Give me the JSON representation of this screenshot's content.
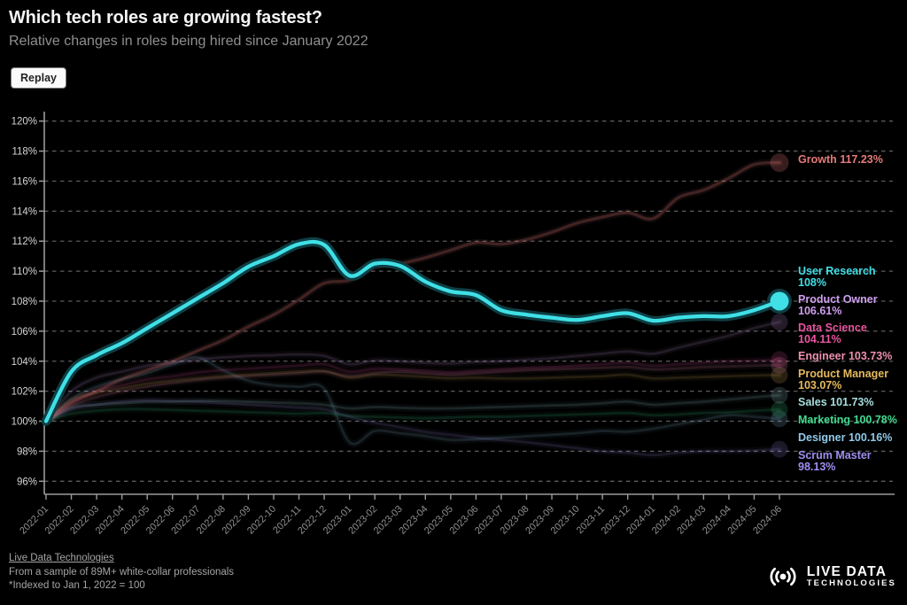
{
  "header": {
    "title": "Which tech roles are growing fastest?",
    "subtitle": "Relative changes in roles being hired since January 2022",
    "replay_label": "Replay"
  },
  "footer": {
    "source": "Live Data Technologies",
    "sample": "From a sample of 89M+ white-collar professionals",
    "note": "*Indexed to Jan 1, 2022 = 100",
    "logo_name": "LIVE DATA",
    "logo_sub": "TECHNOLOGIES"
  },
  "chart_data": {
    "type": "line",
    "x": [
      "2022-01",
      "2022-02",
      "2022-03",
      "2022-04",
      "2022-05",
      "2022-06",
      "2022-07",
      "2022-08",
      "2022-09",
      "2022-10",
      "2022-11",
      "2022-12",
      "2023-01",
      "2023-02",
      "2023-03",
      "2023-04",
      "2023-05",
      "2023-06",
      "2023-07",
      "2023-08",
      "2023-09",
      "2023-10",
      "2023-11",
      "2023-12",
      "2024-01",
      "2024-02",
      "2024-03",
      "2024-04",
      "2024-05",
      "2024-06"
    ],
    "ylim": [
      96,
      120
    ],
    "ytick_step": 2,
    "ytick_format": "percent",
    "grid": "dashed-horizontal",
    "legend_position": "right-end-labels",
    "baseline_note": "indexed, Jan 2022 = 100",
    "series": [
      {
        "name": "Growth",
        "final_label": "117.23%",
        "color": "#E57A7A",
        "highlight": false,
        "emphasis": "medium",
        "values": [
          100,
          101.2,
          102.0,
          102.8,
          103.4,
          104.0,
          104.7,
          105.4,
          106.3,
          107.1,
          108.1,
          109.2,
          109.4,
          110.3,
          110.5,
          110.9,
          111.4,
          111.9,
          111.8,
          112.1,
          112.6,
          113.2,
          113.6,
          113.9,
          113.5,
          114.9,
          115.4,
          116.2,
          117.1,
          117.23
        ]
      },
      {
        "name": "User Research",
        "final_label": "108%",
        "color": "#3FE0E6",
        "highlight": true,
        "emphasis": "high",
        "values": [
          100,
          103.3,
          104.4,
          105.2,
          106.2,
          107.2,
          108.2,
          109.2,
          110.3,
          111.0,
          111.8,
          111.75,
          109.7,
          110.5,
          110.35,
          109.3,
          108.65,
          108.4,
          107.4,
          107.1,
          106.9,
          106.75,
          107.0,
          107.2,
          106.7,
          106.9,
          107.0,
          107.0,
          107.4,
          108.0
        ]
      },
      {
        "name": "Product Owner",
        "final_label": "106.61%",
        "color": "#CF9FEF",
        "highlight": false,
        "emphasis": "faint",
        "values": [
          100,
          102.0,
          102.9,
          103.3,
          103.7,
          103.9,
          104.1,
          104.25,
          104.35,
          104.4,
          104.45,
          104.35,
          103.8,
          104.05,
          104.0,
          103.9,
          103.85,
          103.95,
          104.0,
          104.1,
          104.2,
          104.35,
          104.5,
          104.65,
          104.5,
          104.9,
          105.3,
          105.7,
          106.2,
          106.61
        ]
      },
      {
        "name": "Data Science",
        "final_label": "104.11%",
        "color": "#E8559F",
        "highlight": false,
        "emphasis": "faint",
        "values": [
          100,
          101.3,
          102.0,
          102.4,
          102.8,
          103.0,
          103.25,
          103.4,
          103.5,
          103.6,
          103.7,
          103.8,
          103.3,
          103.5,
          103.45,
          103.35,
          103.25,
          103.35,
          103.45,
          103.55,
          103.6,
          103.7,
          103.8,
          103.9,
          103.7,
          103.8,
          103.9,
          104.0,
          104.05,
          104.11
        ]
      },
      {
        "name": "Engineer",
        "final_label": "103.73%",
        "color": "#EE8FB0",
        "highlight": false,
        "emphasis": "faint",
        "values": [
          100,
          101.0,
          101.6,
          102.0,
          102.3,
          102.55,
          102.75,
          102.9,
          103.0,
          103.1,
          103.2,
          103.3,
          103.0,
          103.2,
          103.3,
          103.2,
          103.1,
          103.2,
          103.3,
          103.4,
          103.45,
          103.5,
          103.55,
          103.6,
          103.45,
          103.5,
          103.6,
          103.65,
          103.7,
          103.73
        ]
      },
      {
        "name": "Product Manager",
        "final_label": "103.07%",
        "color": "#E5B95E",
        "highlight": false,
        "emphasis": "faint",
        "values": [
          100,
          101.4,
          101.9,
          102.2,
          102.5,
          102.7,
          102.85,
          103.0,
          103.1,
          103.2,
          103.3,
          103.35,
          102.9,
          103.1,
          103.05,
          102.95,
          102.85,
          102.9,
          102.85,
          102.85,
          102.9,
          102.95,
          103.0,
          103.1,
          102.85,
          102.9,
          102.95,
          103.0,
          103.05,
          103.07
        ]
      },
      {
        "name": "Sales",
        "final_label": "101.73%",
        "color": "#A8DEDE",
        "highlight": false,
        "emphasis": "faint",
        "values": [
          100,
          100.9,
          101.1,
          101.2,
          101.3,
          101.3,
          101.35,
          101.35,
          101.3,
          101.25,
          101.2,
          101.1,
          100.85,
          100.95,
          100.9,
          100.85,
          100.85,
          100.9,
          100.95,
          101.0,
          101.05,
          101.1,
          101.2,
          101.3,
          101.1,
          101.2,
          101.3,
          101.45,
          101.6,
          101.73
        ]
      },
      {
        "name": "Marketing",
        "final_label": "100.78%",
        "color": "#3FDC8F",
        "highlight": false,
        "emphasis": "faint",
        "values": [
          100,
          100.5,
          100.7,
          100.8,
          100.8,
          100.75,
          100.7,
          100.65,
          100.6,
          100.55,
          100.5,
          100.55,
          100.35,
          100.3,
          100.25,
          100.2,
          100.25,
          100.3,
          100.3,
          100.35,
          100.4,
          100.45,
          100.5,
          100.55,
          100.4,
          100.45,
          100.55,
          100.6,
          100.7,
          100.78
        ]
      },
      {
        "name": "Designer",
        "final_label": "100.16%",
        "color": "#8FC9E9",
        "highlight": false,
        "emphasis": "faint",
        "values": [
          100,
          101.5,
          102.3,
          102.8,
          103.2,
          103.8,
          104.25,
          103.4,
          102.7,
          102.4,
          102.3,
          102.15,
          98.6,
          99.35,
          99.2,
          99.0,
          98.75,
          98.8,
          98.9,
          99.0,
          99.1,
          99.2,
          99.35,
          99.3,
          99.5,
          99.8,
          100.1,
          100.4,
          100.3,
          100.16
        ]
      },
      {
        "name": "Scrum Master",
        "final_label": "98.13%",
        "color": "#9F8FEF",
        "highlight": false,
        "emphasis": "faint",
        "values": [
          100,
          100.8,
          101.1,
          101.3,
          101.4,
          101.35,
          101.3,
          101.2,
          101.1,
          101.0,
          100.9,
          100.8,
          100.3,
          99.9,
          99.6,
          99.3,
          99.1,
          98.9,
          98.75,
          98.6,
          98.4,
          98.2,
          98.0,
          97.9,
          97.75,
          97.9,
          98.0,
          98.0,
          98.05,
          98.13
        ]
      }
    ]
  }
}
